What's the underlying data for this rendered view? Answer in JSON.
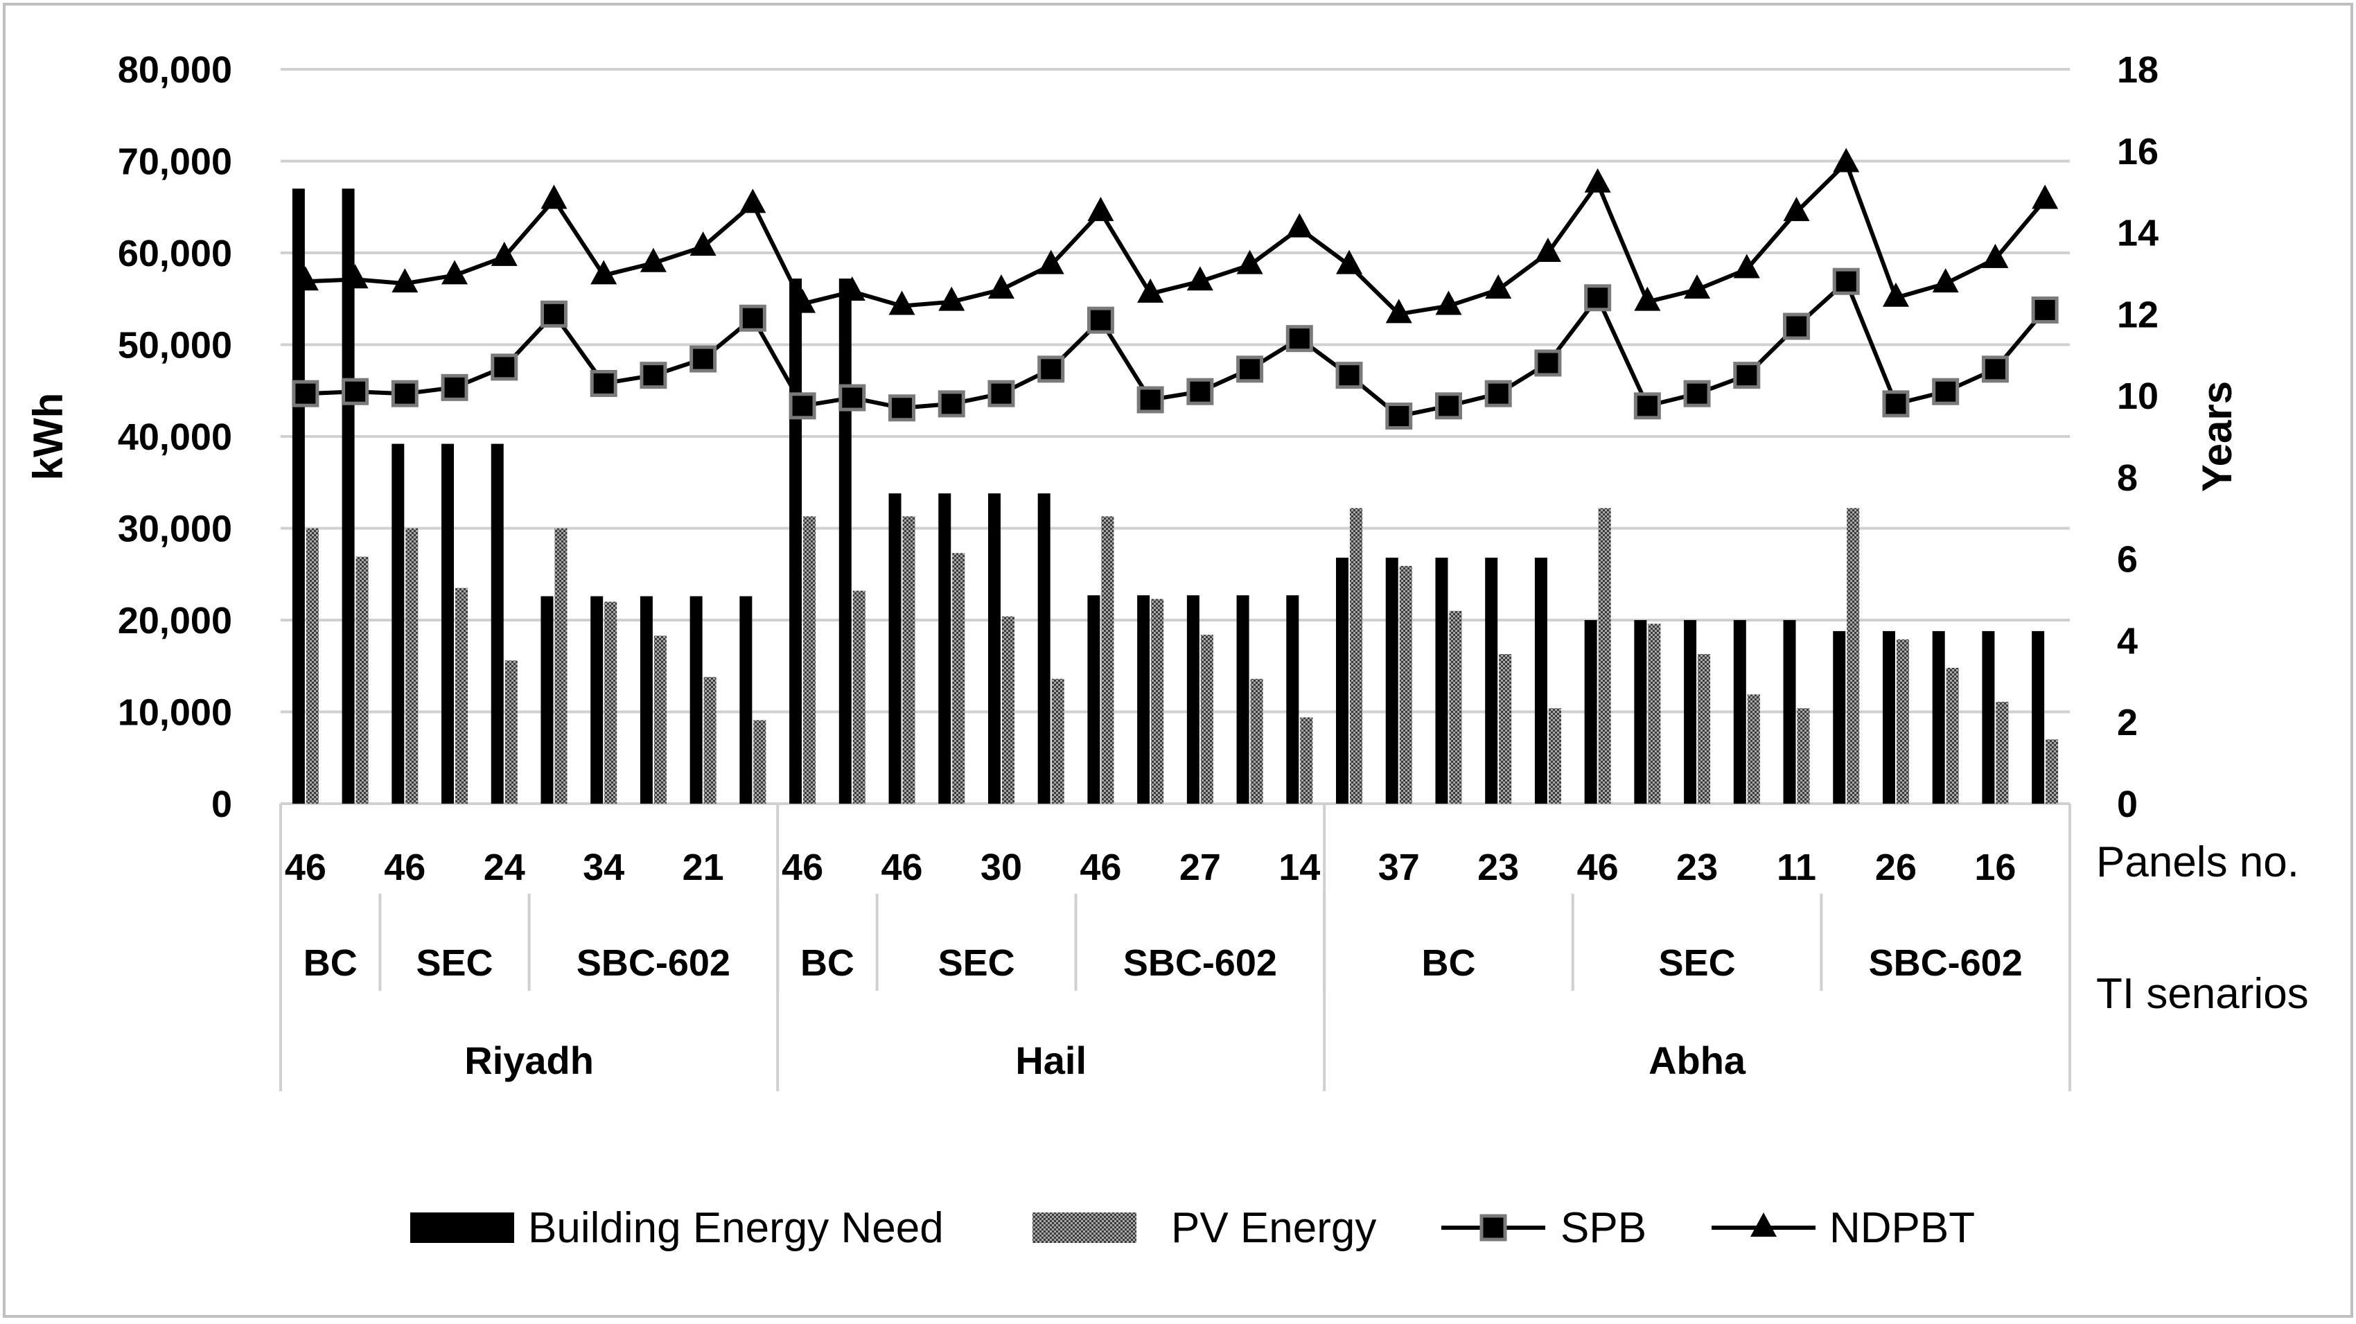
{
  "chart_data": {
    "type": "bar",
    "ylabel": "kWh",
    "y2label": "Years",
    "ylim": [
      0,
      80000
    ],
    "y2lim": [
      0,
      18
    ],
    "yticks": [
      "0",
      "10,000",
      "20,000",
      "30,000",
      "40,000",
      "50,000",
      "60,000",
      "70,000",
      "80,000"
    ],
    "y2ticks": [
      "0",
      "2",
      "4",
      "6",
      "8",
      "10",
      "12",
      "14",
      "16",
      "18"
    ],
    "grid": true,
    "legend_position": "bottom",
    "category_titles": {
      "panels": "Panels no.",
      "scenarios": "TI senarios"
    },
    "panel_labels": [
      "46",
      "",
      "46",
      "",
      "24",
      "",
      "34",
      "",
      "21",
      "",
      "46",
      "",
      "46",
      "",
      "30",
      "",
      "46",
      "",
      "27",
      "",
      "14",
      "",
      "37",
      "",
      "23",
      "",
      "46",
      "",
      "23",
      "",
      "11",
      "",
      "26",
      "",
      "16",
      ""
    ],
    "scenario_groups": [
      {
        "label": "BC",
        "start": 0,
        "end": 1
      },
      {
        "label": "SEC",
        "start": 2,
        "end": 4
      },
      {
        "label": "SBC-602",
        "start": 5,
        "end": 9
      },
      {
        "label": "BC",
        "start": 10,
        "end": 11
      },
      {
        "label": "SEC",
        "start": 12,
        "end": 15
      },
      {
        "label": "SBC-602",
        "start": 16,
        "end": 20
      },
      {
        "label": "BC",
        "start": 21,
        "end": 25
      },
      {
        "label": "SEC",
        "start": 26,
        "end": 30
      },
      {
        "label": "SBC-602",
        "start": 31,
        "end": 35
      }
    ],
    "city_groups": [
      {
        "label": "Riyadh",
        "start": 0,
        "end": 9
      },
      {
        "label": "Hail",
        "start": 10,
        "end": 20
      },
      {
        "label": "Abha",
        "start": 21,
        "end": 35
      }
    ],
    "series": [
      {
        "name": "Building Energy Need",
        "kind": "bar",
        "color": "#000000",
        "values": [
          67000,
          67000,
          39200,
          39200,
          39200,
          22600,
          22600,
          22600,
          22600,
          22600,
          57200,
          57200,
          33800,
          33800,
          33800,
          33800,
          22700,
          22700,
          22700,
          22700,
          22700,
          26800,
          26800,
          26800,
          26800,
          26800,
          20000,
          20000,
          20000,
          20000,
          20000,
          18800,
          18800,
          18800,
          18800,
          18800
        ]
      },
      {
        "name": "PV Energy",
        "kind": "bar",
        "color": "#8c8c8c",
        "values": [
          30000,
          26900,
          30000,
          23500,
          15600,
          30000,
          22000,
          18300,
          13800,
          9100,
          31300,
          23200,
          31300,
          27300,
          20400,
          13600,
          31300,
          22300,
          18400,
          13600,
          9400,
          32200,
          25900,
          21000,
          16300,
          10400,
          32200,
          19600,
          16300,
          11900,
          10400,
          32200,
          17900,
          14800,
          11100,
          7000
        ]
      },
      {
        "name": "SPB",
        "kind": "line",
        "marker": "square",
        "values": [
          10.05,
          10.1,
          10.05,
          10.2,
          10.7,
          12.0,
          10.3,
          10.5,
          10.9,
          11.9,
          9.75,
          9.95,
          9.7,
          9.8,
          10.05,
          10.65,
          11.85,
          9.9,
          10.1,
          10.65,
          11.4,
          10.5,
          9.5,
          9.75,
          10.05,
          10.8,
          12.4,
          9.75,
          10.05,
          10.5,
          11.7,
          12.8,
          9.8,
          10.1,
          10.65,
          12.1
        ]
      },
      {
        "name": "NDPBT",
        "kind": "line",
        "marker": "triangle",
        "values": [
          12.8,
          12.85,
          12.75,
          12.95,
          13.4,
          14.8,
          12.95,
          13.25,
          13.65,
          14.7,
          12.25,
          12.55,
          12.2,
          12.3,
          12.6,
          13.2,
          14.5,
          12.5,
          12.8,
          13.2,
          14.1,
          13.2,
          12.0,
          12.2,
          12.6,
          13.5,
          15.2,
          12.3,
          12.6,
          13.1,
          14.5,
          15.7,
          12.4,
          12.75,
          13.35,
          14.8
        ]
      }
    ]
  }
}
